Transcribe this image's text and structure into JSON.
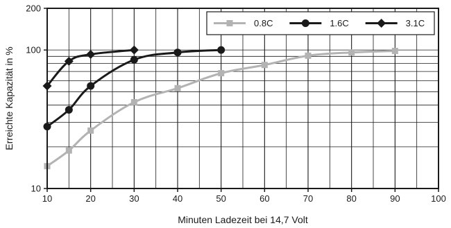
{
  "chart_data": {
    "type": "line",
    "xlabel": "Minuten Ladezeit bei 14,7 Volt",
    "ylabel": "Erreichte Kapazität in %",
    "xlim": [
      10,
      100
    ],
    "ylim": [
      10,
      200
    ],
    "yscale": "log",
    "grid": true,
    "legend_position": "top-right",
    "x_ticks": [
      "10",
      "20",
      "30",
      "40",
      "50",
      "60",
      "70",
      "80",
      "90",
      "100"
    ],
    "y_ticks": [
      "10",
      "100",
      "200"
    ],
    "series": [
      {
        "name": "0.8C",
        "color": "#b3b3b3",
        "marker": "square",
        "x": [
          10,
          15,
          20,
          30,
          40,
          50,
          60,
          70,
          80,
          90
        ],
        "y": [
          14.5,
          18.8,
          26.2,
          42,
          53,
          68,
          78,
          91,
          96,
          98.5
        ]
      },
      {
        "name": "1.6C",
        "color": "#1a1a1a",
        "marker": "circle",
        "x": [
          10,
          15,
          20,
          30,
          40,
          50
        ],
        "y": [
          28,
          37,
          55,
          85,
          96,
          100
        ]
      },
      {
        "name": "3.1C",
        "color": "#1a1a1a",
        "marker": "diamond",
        "x": [
          10,
          15,
          20,
          30
        ],
        "y": [
          55,
          83,
          93,
          100
        ]
      }
    ]
  }
}
